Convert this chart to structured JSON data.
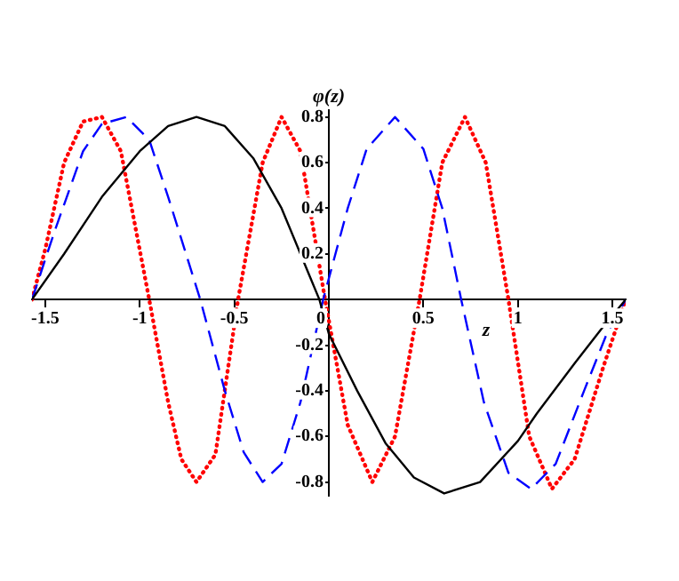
{
  "chart_data": {
    "type": "line",
    "xlabel": "z",
    "ylabel": "φ(z)",
    "xlim": [
      -1.57,
      1.57
    ],
    "ylim": [
      -0.86,
      0.83
    ],
    "xticks": [
      -1.5,
      -1,
      -0.5,
      0,
      0.5,
      1,
      1.5
    ],
    "yticks": [
      -0.8,
      -0.6,
      -0.4,
      -0.2,
      0.2,
      0.4,
      0.6,
      0.8
    ],
    "grid": false,
    "legend": false,
    "marker": "none",
    "series": [
      {
        "color": "#000000",
        "line_style": "solid",
        "x": [
          -1.57,
          -1.4,
          -1.2,
          -1.0,
          -0.85,
          -0.7,
          -0.55,
          -0.4,
          -0.25,
          -0.1,
          -0.05,
          0,
          0.15,
          0.3,
          0.45,
          0.61,
          0.8,
          1.0,
          1.1,
          1.3,
          1.45,
          1.57
        ],
        "values": [
          0,
          0.2,
          0.45,
          0.65,
          0.76,
          0.8,
          0.76,
          0.62,
          0.4,
          0.1,
          0,
          -0.15,
          -0.4,
          -0.63,
          -0.78,
          -0.85,
          -0.8,
          -0.62,
          -0.5,
          -0.28,
          -0.12,
          0
        ]
      },
      {
        "color": "#0000ff",
        "line_style": "dashed",
        "x": [
          -1.57,
          -1.45,
          -1.3,
          -1.2,
          -1.07,
          -0.95,
          -0.85,
          -0.68,
          -0.55,
          -0.45,
          -0.35,
          -0.25,
          -0.15,
          -0.03,
          0.1,
          0.2,
          0.35,
          0.5,
          0.6,
          0.7,
          0.82,
          0.95,
          1.07,
          1.2,
          1.35,
          1.47,
          1.57
        ],
        "values": [
          0,
          0.3,
          0.65,
          0.77,
          0.8,
          0.7,
          0.45,
          0,
          -0.4,
          -0.67,
          -0.8,
          -0.72,
          -0.45,
          0,
          0.4,
          0.66,
          0.8,
          0.66,
          0.4,
          0,
          -0.45,
          -0.76,
          -0.83,
          -0.72,
          -0.4,
          -0.15,
          0
        ]
      },
      {
        "color": "#ff0000",
        "line_style": "dotted",
        "x": [
          -1.57,
          -1.5,
          -1.4,
          -1.3,
          -1.2,
          -1.1,
          -0.95,
          -0.85,
          -0.78,
          -0.7,
          -0.6,
          -0.48,
          -0.35,
          -0.25,
          -0.15,
          -0.02,
          0.1,
          0.23,
          0.35,
          0.48,
          0.6,
          0.72,
          0.83,
          0.95,
          1.06,
          1.18,
          1.3,
          1.45,
          1.57
        ],
        "values": [
          0,
          0.22,
          0.6,
          0.78,
          0.8,
          0.65,
          0,
          -0.45,
          -0.7,
          -0.8,
          -0.68,
          0,
          0.6,
          0.8,
          0.65,
          0,
          -0.55,
          -0.8,
          -0.6,
          0,
          0.6,
          0.8,
          0.6,
          0,
          -0.6,
          -0.83,
          -0.7,
          -0.3,
          0
        ]
      }
    ]
  }
}
